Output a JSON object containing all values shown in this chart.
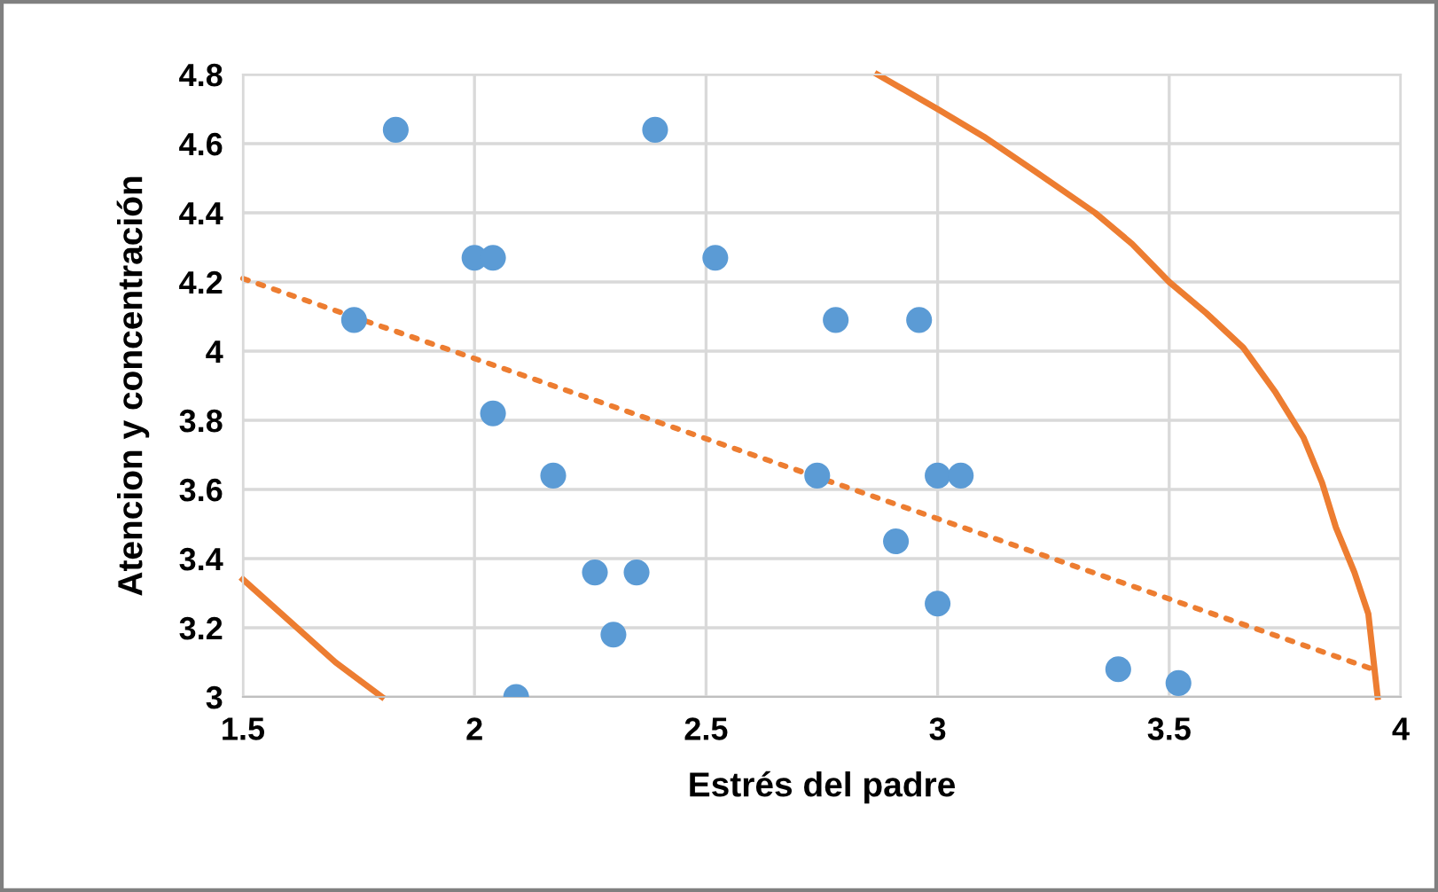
{
  "chart_data": {
    "type": "scatter",
    "xlabel": "Estrés del padre",
    "ylabel": "Atencion y concentración",
    "xlim": [
      1.5,
      4
    ],
    "ylim": [
      3,
      4.8
    ],
    "xticks": [
      1.5,
      2,
      2.5,
      3,
      3.5,
      4
    ],
    "yticks": [
      3,
      3.2,
      3.4,
      3.6,
      3.8,
      4,
      4.2,
      4.4,
      4.6,
      4.8
    ],
    "grid": true,
    "legend": false,
    "marker": "circle",
    "series": [
      {
        "color": "#5b9bd5",
        "x": [
          1.83,
          2.39,
          2.0,
          2.04,
          2.52,
          1.74,
          2.04,
          2.17,
          2.74,
          2.26,
          2.35,
          2.3,
          2.09,
          2.78,
          2.96,
          3.0,
          3.05,
          2.91,
          3.0,
          3.39,
          3.52
        ],
        "values": [
          4.64,
          4.64,
          4.27,
          4.27,
          4.27,
          4.09,
          3.82,
          3.64,
          3.64,
          3.36,
          3.36,
          3.18,
          3.0,
          4.09,
          4.09,
          3.64,
          3.64,
          3.45,
          3.27,
          3.08,
          3.04
        ]
      },
      {
        "type": "line",
        "color": "#ed7d31",
        "line_style": "dotted",
        "marker": "none",
        "x": [
          1.5,
          3.94
        ],
        "values": [
          4.21,
          3.08
        ]
      },
      {
        "type": "line",
        "color": "#ed7d31",
        "line_style": "solid",
        "marker": "none",
        "x": [
          2.87,
          3.0,
          3.1,
          3.21,
          3.34,
          3.42,
          3.5,
          3.58,
          3.66,
          3.73,
          3.79,
          3.83,
          3.86,
          3.9,
          3.93,
          3.95,
          null,
          1.5,
          1.6,
          1.7,
          1.8
        ],
        "values": [
          4.8,
          4.7,
          4.62,
          4.52,
          4.4,
          4.31,
          4.2,
          4.11,
          4.01,
          3.88,
          3.75,
          3.62,
          3.49,
          3.36,
          3.24,
          3.0,
          null,
          3.34,
          3.22,
          3.1,
          3.0
        ]
      }
    ]
  }
}
